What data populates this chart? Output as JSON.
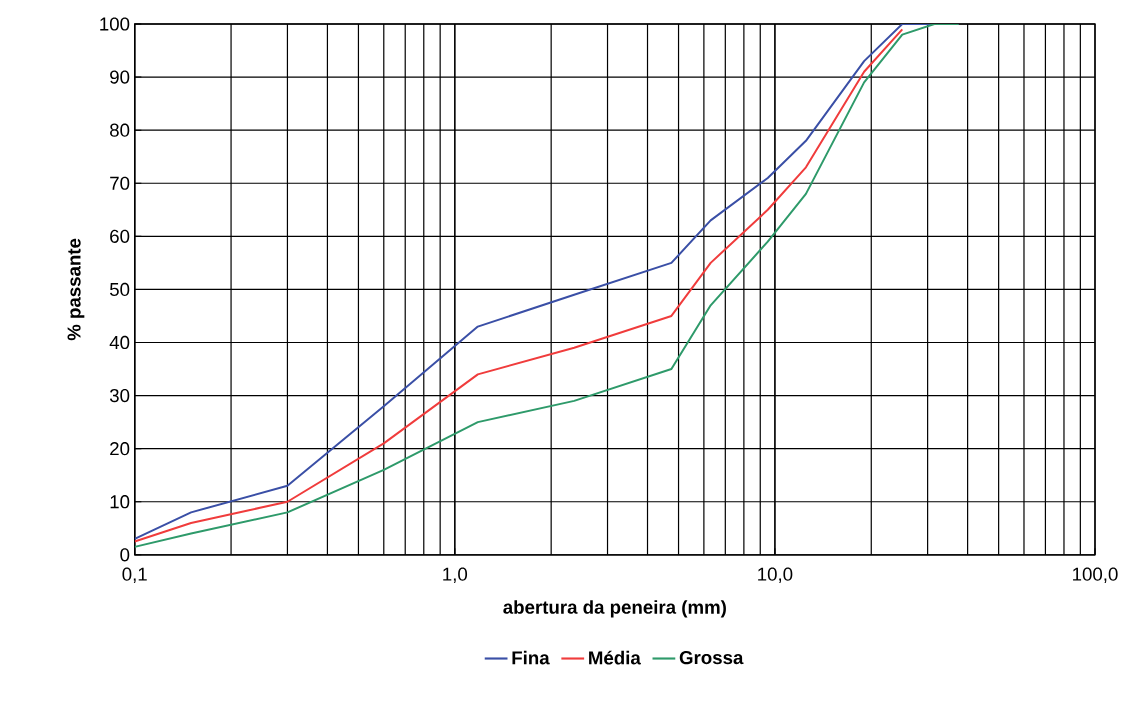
{
  "chart_data": {
    "type": "line",
    "xlabel": "abertura da peneira (mm)",
    "ylabel": "% passante",
    "x": [
      0.1,
      0.15,
      0.3,
      0.6,
      1.18,
      2.36,
      4.75,
      6.3,
      9.5,
      12.5,
      19,
      25,
      31.5,
      37.5
    ],
    "series": [
      {
        "name": "Fina",
        "color": "#3a4fa6",
        "values": [
          3,
          8,
          13,
          28,
          43,
          49,
          55,
          63,
          71,
          78,
          93,
          100,
          100,
          100
        ]
      },
      {
        "name": "Média",
        "color": "#f03c3c",
        "values": [
          2.5,
          6,
          10,
          21,
          34,
          39,
          45,
          55,
          65,
          73,
          91,
          99,
          null,
          null
        ]
      },
      {
        "name": "Grossa",
        "color": "#2e9a6a",
        "values": [
          1.5,
          4,
          8,
          16,
          25,
          29,
          35,
          47,
          59,
          68,
          89,
          98,
          100,
          100
        ]
      }
    ],
    "log": "x",
    "xlim": [
      0.1,
      100
    ],
    "ylim": [
      0,
      100
    ],
    "xticks": [
      {
        "value": 0.1,
        "label": "0,1"
      },
      {
        "value": 1,
        "label": "1,0"
      },
      {
        "value": 10,
        "label": "10,0"
      },
      {
        "value": 100,
        "label": "100,0"
      }
    ],
    "yticks": [
      0,
      10,
      20,
      30,
      40,
      50,
      60,
      70,
      80,
      90,
      100
    ],
    "grid": true,
    "legend": "bottom",
    "marker": "none",
    "line_style": "solid"
  }
}
